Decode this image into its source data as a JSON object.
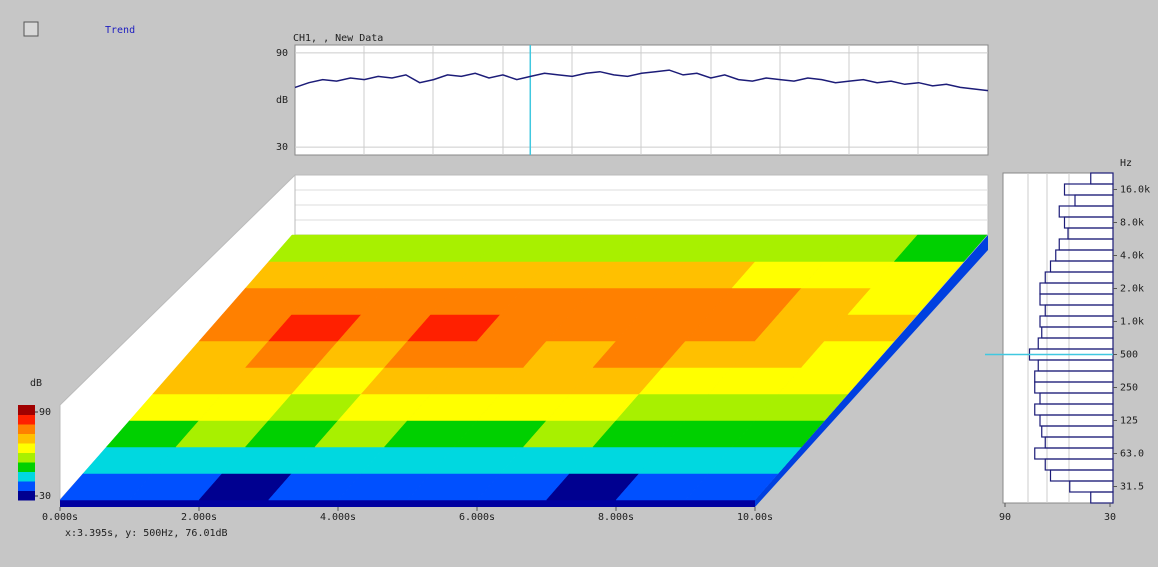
{
  "window": {
    "title": "Trend",
    "status": "x:3.395s, y:  500Hz,  76.01dB"
  },
  "chart_data": [
    {
      "type": "line",
      "title": "CH1, , New Data",
      "y_label": "dB",
      "x": [
        0,
        0.2,
        0.4,
        0.6,
        0.8,
        1,
        1.2,
        1.4,
        1.6,
        1.8,
        2,
        2.2,
        2.4,
        2.6,
        2.8,
        3,
        3.2,
        3.4,
        3.6,
        3.8,
        4,
        4.2,
        4.4,
        4.6,
        4.8,
        5,
        5.2,
        5.4,
        5.6,
        5.8,
        6,
        6.2,
        6.4,
        6.6,
        6.8,
        7,
        7.2,
        7.4,
        7.6,
        7.8,
        8,
        8.2,
        8.4,
        8.6,
        8.8,
        9,
        9.2,
        9.4,
        9.6,
        9.8,
        10
      ],
      "series": [
        {
          "color": "#1c1c78",
          "values": [
            68,
            71,
            73,
            72,
            74,
            73,
            75,
            74,
            76,
            71,
            73,
            76,
            75,
            77,
            74,
            76,
            73,
            75,
            77,
            76,
            75,
            77,
            78,
            76,
            75,
            77,
            78,
            79,
            76,
            77,
            74,
            76,
            73,
            72,
            74,
            73,
            72,
            74,
            73,
            71,
            72,
            73,
            71,
            72,
            70,
            71,
            69,
            70,
            68,
            67,
            66
          ]
        }
      ],
      "xlim": [
        0,
        10
      ],
      "ylim": [
        25,
        95
      ],
      "yticks": [
        30,
        90
      ],
      "cursor_x": 3.395,
      "grid": true
    },
    {
      "type": "heatmap",
      "xlim": [
        0,
        10
      ],
      "xticks": [
        {
          "value": 0,
          "label": "0.000s"
        },
        {
          "value": 2,
          "label": "2.000s"
        },
        {
          "value": 4,
          "label": "4.000s"
        },
        {
          "value": 6,
          "label": "6.000s"
        },
        {
          "value": 8,
          "label": "8.000s"
        },
        {
          "value": 10,
          "label": "10.00s"
        }
      ],
      "z": [
        [
          36,
          37,
          35,
          38,
          36,
          37,
          36,
          35,
          36,
          37
        ],
        [
          44,
          46,
          43,
          45,
          47,
          44,
          45,
          43,
          44,
          45
        ],
        [
          52,
          54,
          51,
          55,
          53,
          52,
          54,
          51,
          50,
          49
        ],
        [
          60,
          62,
          59,
          63,
          61,
          60,
          62,
          58,
          57,
          55
        ],
        [
          66,
          68,
          65,
          69,
          67,
          66,
          68,
          64,
          62,
          60
        ],
        [
          71,
          73,
          70,
          74,
          72,
          71,
          73,
          69,
          67,
          64
        ],
        [
          76,
          78,
          75,
          79,
          77,
          76,
          77,
          73,
          70,
          66
        ],
        [
          74,
          76,
          73,
          77,
          75,
          74,
          75,
          72,
          68,
          65
        ],
        [
          67,
          69,
          66,
          70,
          68,
          67,
          68,
          65,
          63,
          60
        ],
        [
          56,
          57,
          55,
          58,
          57,
          56,
          57,
          55,
          54,
          53
        ]
      ],
      "zlim": [
        30,
        90
      ],
      "zticks": [
        30,
        90
      ],
      "z_label": "dB",
      "colorscale": [
        "#000090",
        "#0050ff",
        "#00d8e0",
        "#00d000",
        "#a8f000",
        "#ffff00",
        "#ffc000",
        "#ff8000",
        "#ff2000",
        "#a00000"
      ]
    },
    {
      "type": "barh",
      "y_label": "Hz",
      "categories": [
        null,
        "16.0k",
        null,
        null,
        "8.0k",
        null,
        null,
        "4.0k",
        null,
        null,
        "2.0k",
        null,
        null,
        "1.0k",
        null,
        null,
        "500",
        null,
        null,
        "250",
        null,
        null,
        "125",
        null,
        null,
        "63.0",
        null,
        null,
        "31.5",
        null
      ],
      "values": [
        41,
        56,
        50,
        59,
        56,
        54,
        59,
        61,
        64,
        67,
        70,
        70,
        67,
        70,
        69,
        71,
        76,
        71,
        73,
        73,
        70,
        73,
        70,
        69,
        67,
        73,
        67,
        64,
        53,
        41
      ],
      "xlim": [
        90,
        30
      ],
      "xticks": [
        90,
        30
      ],
      "color": "#1c1c78",
      "cursor_category": "500",
      "grid": true
    }
  ]
}
